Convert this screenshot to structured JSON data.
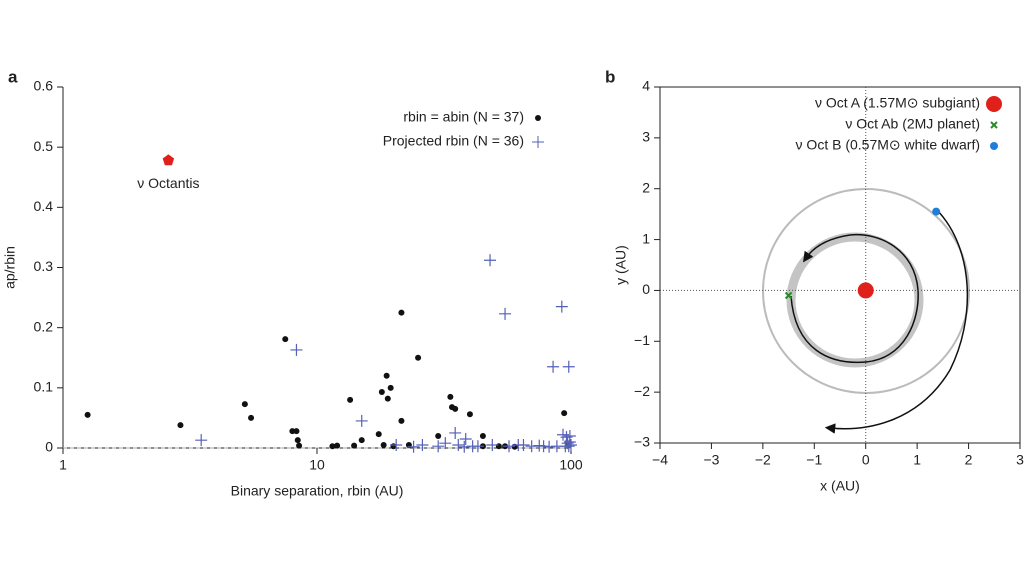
{
  "chart_data": [
    {
      "type": "scatter",
      "panel": "a",
      "xscale": "log",
      "xlabel": "Binary separation, rbin (AU)",
      "ylabel": "ap/rbin",
      "xlim": [
        1,
        100
      ],
      "xticks": [
        1,
        10,
        100
      ],
      "ylim": [
        0,
        0.6
      ],
      "yticks": [
        0,
        0.1,
        0.2,
        0.3,
        0.4,
        0.5,
        0.6
      ],
      "series": [
        {
          "name": "rbin = abin (N = 37)",
          "color": "#111111",
          "marker": "dot",
          "x": [
            1.25,
            2.9,
            5.2,
            5.5,
            7.5,
            8.0,
            8.3,
            8.4,
            8.5,
            11.5,
            12,
            13.5,
            14,
            15,
            17.5,
            18,
            18.3,
            18.8,
            19,
            19.5,
            20,
            21.5,
            21.5,
            23,
            25,
            30,
            33.5,
            34,
            35,
            40,
            45,
            45,
            52,
            55,
            60,
            94,
            98
          ],
          "y": [
            0.055,
            0.038,
            0.073,
            0.05,
            0.181,
            0.028,
            0.028,
            0.013,
            0.004,
            0.003,
            0.004,
            0.08,
            0.004,
            0.013,
            0.023,
            0.093,
            0.005,
            0.12,
            0.082,
            0.1,
            0.003,
            0.225,
            0.045,
            0.005,
            0.15,
            0.02,
            0.085,
            0.068,
            0.065,
            0.056,
            0.02,
            0.003,
            0.003,
            0.003,
            0.002,
            0.058,
            0.005
          ]
        },
        {
          "name": "Projected rbin (N = 36)",
          "color": "#5560b8",
          "marker": "plus",
          "x": [
            3.5,
            8.3,
            15,
            20.5,
            24,
            26,
            30,
            32,
            35,
            36,
            38,
            38.5,
            41,
            43,
            48,
            49,
            55,
            57,
            62,
            65,
            70,
            75,
            78,
            82,
            85,
            88,
            92,
            93,
            95,
            96,
            97,
            98,
            98,
            99,
            99,
            100
          ],
          "y": [
            0.013,
            0.163,
            0.045,
            0.005,
            0.002,
            0.005,
            0.003,
            0.008,
            0.025,
            0.005,
            0.002,
            0.015,
            0.003,
            0.003,
            0.312,
            0.005,
            0.223,
            0.003,
            0.005,
            0.005,
            0.003,
            0.004,
            0.003,
            0.002,
            0.135,
            0.003,
            0.235,
            0.022,
            0.003,
            0.018,
            0.008,
            0.135,
            0.003,
            0.02,
            0.01,
            0.005
          ]
        }
      ],
      "annotations": [
        {
          "text": "ν Octantis",
          "x": 2.6,
          "y": 0.478,
          "color": "#e0201b"
        }
      ]
    },
    {
      "type": "scatter",
      "panel": "b",
      "xscale": "linear",
      "xlabel": "x (AU)",
      "ylabel": "y (AU)",
      "xlim": [
        -4,
        3
      ],
      "xticks": [
        {
          "value": -4,
          "label": "−4"
        },
        {
          "value": -3,
          "label": "−3"
        },
        {
          "value": -2,
          "label": "−2"
        },
        {
          "value": -1,
          "label": "−1"
        },
        0,
        1,
        2,
        3
      ],
      "ylim": [
        -3,
        4
      ],
      "yticks": [
        {
          "value": -3,
          "label": "−3"
        },
        {
          "value": -2,
          "label": "−2"
        },
        {
          "value": -1,
          "label": "−1"
        },
        0,
        1,
        2,
        3,
        4
      ],
      "series": [
        {
          "name": "ν Oct A (1.57M⊙ subgiant)",
          "color": "#e0201b",
          "marker": "big",
          "x": [
            0
          ],
          "y": [
            0
          ]
        },
        {
          "name": "ν Oct Ab (2MJ planet)",
          "color": "#2a8a2a",
          "marker": "cross",
          "x": [
            -1.5
          ],
          "y": [
            -0.1
          ]
        },
        {
          "name": "ν Oct B (0.57M⊙ white dwarf)",
          "color": "#1f7ed8",
          "marker": "dot",
          "x": [
            1.37
          ],
          "y": [
            1.55
          ]
        }
      ]
    }
  ]
}
